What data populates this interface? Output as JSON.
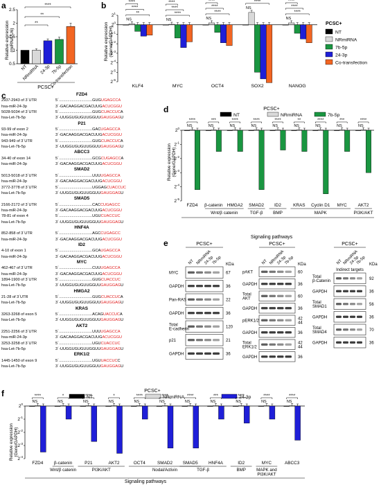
{
  "panel_labels": {
    "a": "a",
    "b": "b",
    "c": "c",
    "d": "d",
    "e": "e",
    "f": "f"
  },
  "colors": {
    "nt": "#000000",
    "nrmirna": "#d9d9d9",
    "p7b5p": "#1a9641",
    "p24_3p": "#1f1fd8",
    "cotrans": "#f26522",
    "seed": "#e11d1d"
  },
  "panel_a": {
    "group_label": "PCSC+",
    "ylabel_line1": "Relative expression",
    "ylabel_line2": "(miRNA/U6)",
    "yticks": [
      "0.5",
      "1",
      "1.5",
      "2",
      "2.5"
    ],
    "sig": [
      "****",
      "**",
      "**"
    ]
  },
  "panel_b": {
    "ylabel_line1": "Relative expression",
    "ylabel_line2": "(Gene/GAPDH)",
    "yticks": [
      "2",
      "2",
      "2",
      "2",
      "2",
      "2",
      "2",
      "2"
    ],
    "ytick_exp": [
      "1",
      "0",
      "-1",
      "-2",
      "-3",
      "-4",
      "-5",
      "-6"
    ],
    "legend_title": "PCSC+",
    "sig_ns": "NS",
    "sig_star4": "****",
    "sig_star2": "**"
  },
  "panel_d": {
    "title": "PCSC+",
    "ylabel_line1": "Relative expression",
    "ylabel_line2": "(Gene/GAPDH)",
    "yticks": [
      "2",
      "2",
      "2",
      "2",
      "2",
      "2"
    ],
    "ytick_exp": [
      "0",
      "-1",
      "-2",
      "-3",
      "-4",
      "-5"
    ],
    "pathway_groups": [
      {
        "label": "Wnt/β catenin",
        "from": 1,
        "to": 2
      },
      {
        "label": "TGF-β",
        "from": 3,
        "to": 3
      },
      {
        "label": "BMP",
        "from": 4,
        "to": 4
      },
      {
        "label": "MAPK",
        "from": 5,
        "to": 7
      },
      {
        "label": "PI3K/AKT",
        "from": 8,
        "to": 8
      }
    ],
    "footer": "Signaling pathways",
    "sig": [
      "****",
      "***",
      "****",
      "****",
      "****",
      "**",
      "****",
      "***",
      "****"
    ]
  },
  "panel_e": {
    "group_label": "PCSC+",
    "lane_labels": [
      "NT",
      "NRmiRNA",
      "24-3p",
      "7b-5p"
    ],
    "kda_label": "KDa",
    "indirect_label": "Indirect targets",
    "blot1": [
      {
        "name": "MYC",
        "kda": "67"
      },
      {
        "name": "GAPDH",
        "kda": "36"
      },
      {
        "name": "Pan-RAS",
        "kda": "22"
      },
      {
        "name": "GAPDH",
        "kda": "36"
      },
      {
        "name": "Total\nE-cadherin",
        "kda": "120"
      },
      {
        "name": "p21",
        "kda": "21"
      },
      {
        "name": "GAPDH",
        "kda": "36"
      }
    ],
    "blot2": [
      {
        "name": "pAKT",
        "kda": "60"
      },
      {
        "name": "GAPDH",
        "kda": "36"
      },
      {
        "name": "Total\nAKT",
        "kda": "60"
      },
      {
        "name": "GAPDH",
        "kda": "36"
      },
      {
        "name": "pERK1/2",
        "kda": "42\n44"
      },
      {
        "name": "GAPDH",
        "kda": "36"
      },
      {
        "name": "Total\nERK1/2",
        "kda": "42\n44"
      },
      {
        "name": "GAPDH",
        "kda": "36"
      }
    ],
    "blot3": [
      {
        "name": "Total\nβ-Catenin",
        "kda": "92"
      },
      {
        "name": "GAPDH",
        "kda": "36"
      },
      {
        "name": "Total\nSMAD1",
        "kda": "56"
      },
      {
        "name": "GAPDH",
        "kda": "36"
      },
      {
        "name": "Total\nSMAD4",
        "kda": "70"
      },
      {
        "name": "GAPDH",
        "kda": "36"
      }
    ]
  },
  "panel_f": {
    "title": "PCSC+",
    "ylabel_line1": "Relative expression",
    "ylabel_line2": "(Gene/GAPDH)",
    "yticks": [
      "2",
      "2",
      "2",
      "2",
      "2"
    ],
    "ytick_exp": [
      "0",
      "-1",
      "-2",
      "-3",
      "-4"
    ],
    "pathway_groups": [
      {
        "label": "Wnt/β catenin",
        "from": 1,
        "to": 1
      },
      {
        "label": "PI3K/AKT",
        "from": 2,
        "to": 3
      },
      {
        "label": "Nodal/Activin",
        "from": 4,
        "to": 6
      },
      {
        "label": "TGF-β",
        "from": 6,
        "to": 7
      },
      {
        "label": "BMP",
        "from": 8,
        "to": 8
      },
      {
        "label": "MAPK and\nPI3K/AKT",
        "from": 9,
        "to": 9
      }
    ],
    "footer": "Signaling pathways",
    "sig": [
      "****",
      "*",
      "****",
      "*",
      "****",
      "****",
      "****",
      "***",
      "****",
      "****",
      "****"
    ]
  },
  "panel_c": {
    "rows": [
      {
        "t": "gene",
        "name": "FZD4"
      },
      {
        "t": "site",
        "name": "2937-2943 of 3´UTR",
        "pre": "5´...............................GUG",
        "red": "UGAGCCA",
        "post": ""
      },
      {
        "t": "seq",
        "name": "hsa-miR-24-3p",
        "pre": "3´-GACAAGGACGACUUG",
        "red": "ACUCGGU",
        "post": ""
      },
      {
        "t": "site",
        "name": "5028-5034 of 3´UTR",
        "pre": "5´...............................GUG",
        "red": "CUACCUC",
        "post": "A"
      },
      {
        "t": "seq",
        "name": "hsa-Let-7b-5p",
        "pre": "3´-UUGGUGUGUUGGUU",
        "red": "GAUGGAG",
        "post": "U"
      },
      {
        "t": "gene",
        "name": "P21"
      },
      {
        "t": "site",
        "name": "93-99 of exon 2",
        "pre": "5´...............................GAC",
        "red": "UGAGCCA",
        "post": ""
      },
      {
        "t": "seq",
        "name": "hsa-miR-24-3p",
        "pre": "3´-GACAAGGACGACUUG",
        "red": "ACUCGGU",
        "post": ""
      },
      {
        "t": "site",
        "name": "943-949 of 3´UTR",
        "pre": "5´...............................GUG",
        "red": "CUACCUC",
        "post": "A"
      },
      {
        "t": "seq",
        "name": "hsa-Let-7b-5p",
        "pre": "3´-UUGGUGUGUUGGUU",
        "red": "GAUGGAG",
        "post": "U"
      },
      {
        "t": "gene",
        "name": "ABCC3"
      },
      {
        "t": "site",
        "name": "34-40 of exon 14",
        "pre": "5´...............................GCG",
        "red": "CUGAGCC",
        "post": "A"
      },
      {
        "t": "seq",
        "name": "hsa-miR-24-3p",
        "pre": "3´-GACAAGGACGACUUG",
        "red": "ACUCGGU",
        "post": ""
      },
      {
        "t": "gene",
        "name": "SMAD2"
      },
      {
        "t": "site",
        "name": "5013-5018 of 3´UTR",
        "pre": "5´...............................UUU",
        "red": "UGAGCCA",
        "post": ""
      },
      {
        "t": "seq",
        "name": "hsa-miR-24-3p",
        "pre": "3´-GACAAGGACGACUUG",
        "red": "ACUCGGU",
        "post": ""
      },
      {
        "t": "site",
        "name": "3772-3778 of 3´UTR",
        "pre": "5´...............................UGGAG",
        "red": "CUACCUC",
        "post": ""
      },
      {
        "t": "seq",
        "name": "hsa-Let-7b-5p",
        "pre": "3´-UUGGUGUGUUGGUU",
        "red": "GAUGGAG",
        "post": "U"
      },
      {
        "t": "gene",
        "name": "SMAD5"
      },
      {
        "t": "site",
        "name": "2166-2172 of 3´UTR",
        "pre": "5´...............................CAC",
        "red": "CUGAGCC",
        "post": ""
      },
      {
        "t": "seq",
        "name": "hsa-miR-24-3p",
        "pre": "3´-GACAAGGACGACUUG",
        "red": "ACUCGGU",
        "post": ""
      },
      {
        "t": "site",
        "name": "78-81 of exon 4",
        "pre": "5´...............................UGU",
        "red": "CUACCUC",
        "post": ""
      },
      {
        "t": "seq",
        "name": "hsa-Let-7b-5p",
        "pre": "3´-UUGGUGUGUUGGUU",
        "red": "GAUGGAG",
        "post": "U"
      },
      {
        "t": "gene",
        "name": "HNF4A"
      },
      {
        "t": "site",
        "name": "852-858 of 3´UTR",
        "pre": "5´...............................AGC",
        "red": "CUGAGCC",
        "post": ""
      },
      {
        "t": "seq",
        "name": "hsa-miR-24-3p",
        "pre": "3´-GACAAGGACGACUUG",
        "red": "ACUCGGU",
        "post": ""
      },
      {
        "t": "gene",
        "name": "ID2"
      },
      {
        "t": "site",
        "name": "4-10 of exon 1",
        "pre": "5´...............................GCA",
        "red": "UGAGCCA",
        "post": ""
      },
      {
        "t": "seq",
        "name": "hsa-miR-24-3p",
        "pre": "3´-GACAAGGACGACUUG",
        "red": "ACUCGGU",
        "post": ""
      },
      {
        "t": "gene",
        "name": "MYC"
      },
      {
        "t": "site",
        "name": "462-467 of 3´UTR",
        "pre": "5´...............................CUU",
        "red": "UGAGCCA",
        "post": ""
      },
      {
        "t": "seq",
        "name": "hsa-miR-24-3p",
        "pre": "3´-GACAAGGACGACUUG",
        "red": "ACUCGGU",
        "post": ""
      },
      {
        "t": "site",
        "name": "1894-1900 of 3´UTR",
        "pre": "5´...............................GUG",
        "red": "CUACCUC",
        "post": ""
      },
      {
        "t": "seq",
        "name": "hsa-Let-7b-5p",
        "pre": "3´-UUGGUGUGUUGGUU",
        "red": "GAUGGAG",
        "post": "U"
      },
      {
        "t": "gene",
        "name": "HMGA2"
      },
      {
        "t": "site",
        "name": "21-28 of 3´UTR",
        "pre": "5´...............................GUG",
        "red": "CUACCUC",
        "post": "A"
      },
      {
        "t": "seq",
        "name": "hsa-Let-7b-5p",
        "pre": "3´-UUGGUGUGUUGGUU",
        "red": "GAUGGAG",
        "post": "U"
      },
      {
        "t": "gene",
        "name": "KRAS"
      },
      {
        "t": "site",
        "name": "3263-3268 of exon 5",
        "pre": "5´...............................ACAG",
        "red": "UACCUC",
        "post": "A"
      },
      {
        "t": "seq",
        "name": "hsa-Let-7b-5p",
        "pre": "3´-UUGGUGUGUUGGUU",
        "red": "GAUGGAG",
        "post": "U"
      },
      {
        "t": "gene",
        "name": "AKT2"
      },
      {
        "t": "site",
        "name": "2251-2256 of 3´UTR",
        "pre": "5´...............................UUU",
        "red": "UGAGCCA",
        "post": ""
      },
      {
        "t": "seq",
        "name": "hsa-miR-24-3p",
        "pre": "3´-GACAAGGACGACUUG",
        "red": "ACUCGGU",
        "post": ""
      },
      {
        "t": "site",
        "name": "3253-3258 of 3´UTR",
        "pre": "5´...............................UGU",
        "red": "CUACCUC",
        "post": ""
      },
      {
        "t": "seq",
        "name": "hsa-Let-7b-5p",
        "pre": "3´-UUGGUGUGUUGGUU",
        "red": "GAUGGAG",
        "post": "U"
      },
      {
        "t": "gene",
        "name": "ERK1/2"
      },
      {
        "t": "site",
        "name": "1445-1450 of exon 9",
        "pre": "5´...............................UGU",
        "red": "UACCUC",
        "post": "C"
      },
      {
        "t": "seq",
        "name": "hsa-Let-7b-5p",
        "pre": "3´-UUGGUGUGUUGGUU",
        "red": "GAUGGAG",
        "post": "U"
      }
    ]
  },
  "chart_data": [
    {
      "type": "bar",
      "panel": "a",
      "categories": [
        "NT",
        "NRmiRNA",
        "24-3p",
        "7b-5p",
        "Co-transfection"
      ],
      "values": [
        1.0,
        1.0,
        1.35,
        1.4,
        1.88
      ],
      "errors": [
        0.0,
        0.05,
        0.07,
        0.08,
        0.12
      ],
      "ylim": [
        0.5,
        2.5
      ],
      "ylabel": "Relative expression (miRNA/U6)",
      "xgroup": "PCSC+"
    },
    {
      "type": "bar",
      "panel": "b",
      "log_base": 2,
      "categories": [
        "KLF4",
        "MYC",
        "OCT4",
        "SOX2",
        "NANOG"
      ],
      "series": [
        {
          "name": "NT",
          "values": [
            0,
            0,
            0,
            0,
            0
          ]
        },
        {
          "name": "NRmiRNA",
          "values": [
            0.1,
            0.05,
            0.2,
            1.3,
            0.2
          ]
        },
        {
          "name": "7b-5p",
          "values": [
            -0.7,
            -1.4,
            -0.8,
            -5.0,
            -0.9
          ]
        },
        {
          "name": "24-3p",
          "values": [
            -1.2,
            -2.4,
            -1.9,
            -5.7,
            -1.5
          ]
        },
        {
          "name": "Co-transfection",
          "values": [
            -1.1,
            -1.8,
            -2.2,
            -6.1,
            -1.9
          ]
        }
      ],
      "ylim": [
        -6,
        1
      ],
      "ylabel": "Relative expression (Gene/GAPDH)"
    },
    {
      "type": "bar",
      "panel": "d",
      "log_base": 2,
      "categories": [
        "FZD4",
        "β-catenin",
        "HMGA2",
        "SMAD2",
        "ID2",
        "KRAS",
        "Cyclin D1",
        "MYC",
        "AKT2"
      ],
      "series": [
        {
          "name": "NT",
          "values": [
            0,
            0,
            0,
            0,
            0,
            0,
            0,
            0,
            0
          ]
        },
        {
          "name": "NRmiRNA",
          "values": [
            0.03,
            0.03,
            0.03,
            0.03,
            0.03,
            0.03,
            0.03,
            0.03,
            0.03
          ]
        },
        {
          "name": "7b-5p",
          "values": [
            -4.2,
            -1.5,
            -1.5,
            -4.2,
            -1.4,
            -1.5,
            -4.5,
            -1.5,
            -3.0
          ]
        }
      ],
      "ylim": [
        -5,
        0
      ],
      "ylabel": "Relative expression (Gene/GAPDH)"
    },
    {
      "type": "bar",
      "panel": "f",
      "log_base": 2,
      "categories": [
        "FZD4",
        "β-catenin",
        "P21",
        "AKT2",
        "OCT4",
        "SMAD2",
        "SMAD5",
        "HNF4A",
        "ID2",
        "MYC",
        "ABCC3"
      ],
      "series": [
        {
          "name": "NT",
          "values": [
            0,
            0,
            0,
            0,
            0,
            0,
            0,
            0,
            0,
            0,
            0
          ]
        },
        {
          "name": "NRmiRNA",
          "values": [
            0.03,
            0.03,
            0.03,
            0.03,
            0.03,
            0.03,
            0.03,
            0.03,
            0.03,
            0.03,
            0.03
          ]
        },
        {
          "name": "24-3p",
          "values": [
            -3.5,
            -1.0,
            -2.7,
            -3.6,
            -1.0,
            -3.2,
            -3.2,
            -1.0,
            -1.3,
            -1.0,
            -2.6
          ]
        }
      ],
      "ylim": [
        -4,
        0
      ],
      "ylabel": "Relative expression (Gene/GAPDH)"
    }
  ]
}
